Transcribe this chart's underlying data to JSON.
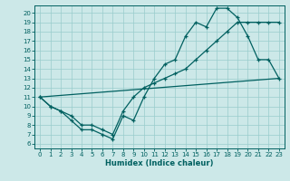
{
  "xlabel": "Humidex (Indice chaleur)",
  "bg_color": "#cce8e8",
  "line_color": "#006060",
  "grid_color": "#99cccc",
  "xlim": [
    -0.5,
    23.5
  ],
  "ylim": [
    5.5,
    20.8
  ],
  "yticks": [
    6,
    7,
    8,
    9,
    10,
    11,
    12,
    13,
    14,
    15,
    16,
    17,
    18,
    19,
    20
  ],
  "xticks": [
    0,
    1,
    2,
    3,
    4,
    5,
    6,
    7,
    8,
    9,
    10,
    11,
    12,
    13,
    14,
    15,
    16,
    17,
    18,
    19,
    20,
    21,
    22,
    23
  ],
  "line1_x": [
    0,
    1,
    2,
    3,
    4,
    5,
    6,
    7,
    8,
    9,
    10,
    11,
    12,
    13,
    14,
    15,
    16,
    17,
    18,
    19,
    20,
    21,
    22,
    23
  ],
  "line1_y": [
    11,
    10,
    9.5,
    8.5,
    7.5,
    7.5,
    7,
    6.5,
    9,
    8.5,
    11,
    13,
    14.5,
    15,
    17.5,
    19,
    18.5,
    20.5,
    20.5,
    19.5,
    17.5,
    15,
    15,
    13
  ],
  "line2_x": [
    0,
    1,
    2,
    3,
    4,
    5,
    6,
    7,
    8,
    9,
    10,
    11,
    12,
    13,
    14,
    15,
    16,
    17,
    18,
    19,
    20,
    21,
    22,
    23
  ],
  "line2_y": [
    11,
    10,
    9.5,
    9,
    8,
    8,
    7.5,
    7,
    9.5,
    11,
    12,
    12.5,
    13,
    13.5,
    14,
    15,
    16,
    17,
    18,
    19,
    19,
    19,
    19,
    19
  ],
  "line3_x": [
    0,
    23
  ],
  "line3_y": [
    11,
    13
  ]
}
